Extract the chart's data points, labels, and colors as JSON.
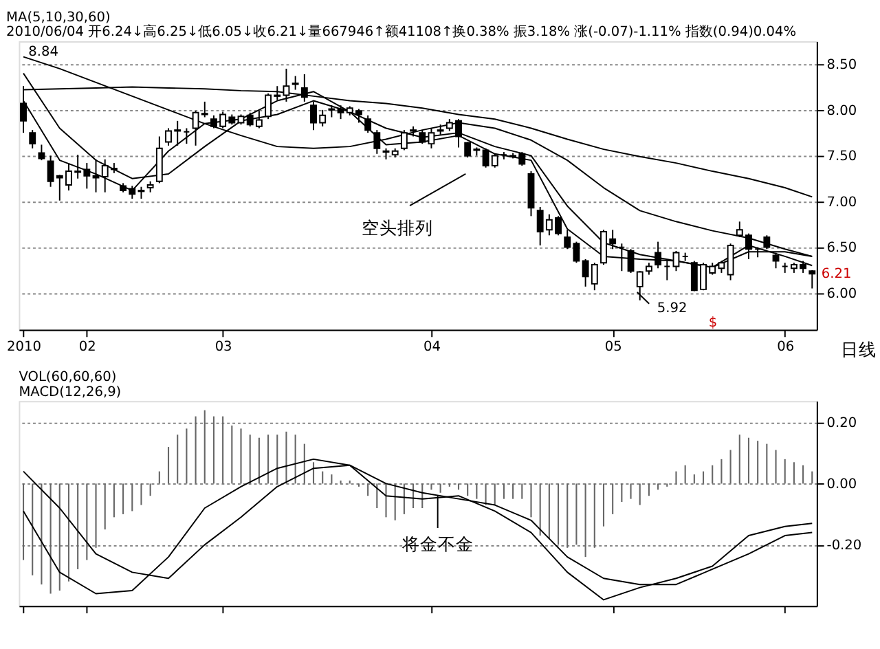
{
  "chart_data": [
    {
      "type": "candlestick",
      "title": "MA(5,10,30,60)",
      "subtitle": "2010/06/04 开6.24↓高6.25↓低6.05↓收6.21↓量667946↑额41108↑换0.38% 振3.18% 涨(-0.07)-1.11% 指数(0.94)0.04%",
      "categories": [
        "2010",
        null,
        null,
        null,
        null,
        null,
        null,
        "02",
        null,
        null,
        null,
        null,
        null,
        null,
        null,
        null,
        null,
        null,
        null,
        null,
        null,
        null,
        "03",
        null,
        null,
        null,
        null,
        null,
        null,
        null,
        null,
        null,
        null,
        null,
        null,
        null,
        null,
        null,
        null,
        null,
        null,
        null,
        null,
        null,
        null,
        "04",
        null,
        null,
        null,
        null,
        null,
        null,
        null,
        null,
        null,
        null,
        null,
        null,
        null,
        null,
        null,
        null,
        null,
        null,
        null,
        "05",
        null,
        null,
        null,
        null,
        null,
        null,
        null,
        null,
        null,
        null,
        null,
        null,
        null,
        null,
        null,
        null,
        null,
        null,
        "06",
        null,
        null,
        null
      ],
      "ohlc": [
        [
          8.07,
          8.26,
          7.75,
          7.88
        ],
        [
          7.75,
          7.78,
          7.58,
          7.63
        ],
        [
          7.53,
          7.62,
          7.45,
          7.47
        ],
        [
          7.44,
          7.5,
          7.16,
          7.22
        ],
        [
          7.28,
          7.29,
          7.01,
          7.26
        ],
        [
          7.18,
          7.42,
          7.12,
          7.33
        ],
        [
          7.33,
          7.51,
          7.25,
          7.32
        ],
        [
          7.35,
          7.42,
          7.14,
          7.28
        ],
        [
          7.28,
          7.46,
          7.1,
          7.26
        ],
        [
          7.27,
          7.46,
          7.1,
          7.39
        ],
        [
          7.35,
          7.42,
          7.31,
          7.36
        ],
        [
          7.17,
          7.2,
          7.1,
          7.12
        ],
        [
          7.14,
          7.17,
          7.03,
          7.08
        ],
        [
          7.12,
          7.16,
          7.03,
          7.11
        ],
        [
          7.15,
          7.22,
          7.1,
          7.18
        ],
        [
          7.22,
          7.71,
          7.2,
          7.58
        ],
        [
          7.65,
          7.8,
          7.61,
          7.77
        ],
        [
          7.78,
          7.88,
          7.61,
          7.77
        ],
        [
          7.76,
          7.8,
          7.63,
          7.76
        ],
        [
          7.8,
          7.99,
          7.61,
          7.97
        ],
        [
          7.96,
          8.09,
          7.92,
          7.95
        ],
        [
          7.9,
          7.94,
          7.8,
          7.82
        ],
        [
          7.82,
          7.98,
          7.8,
          7.95
        ],
        [
          7.92,
          7.95,
          7.84,
          7.86
        ],
        [
          7.86,
          7.95,
          7.84,
          7.93
        ],
        [
          7.94,
          7.97,
          7.82,
          7.84
        ],
        [
          7.82,
          7.99,
          7.8,
          7.89
        ],
        [
          7.93,
          8.18,
          7.9,
          8.16
        ],
        [
          8.16,
          8.26,
          8.11,
          8.15
        ],
        [
          8.16,
          8.45,
          8.09,
          8.26
        ],
        [
          8.28,
          8.37,
          8.22,
          8.29
        ],
        [
          8.24,
          8.39,
          8.09,
          8.14
        ],
        [
          8.05,
          8.09,
          7.78,
          7.86
        ],
        [
          7.86,
          8.0,
          7.82,
          7.94
        ],
        [
          8.01,
          8.05,
          7.92,
          8.0
        ],
        [
          8.01,
          8.05,
          7.9,
          7.97
        ],
        [
          7.97,
          8.04,
          7.94,
          8.02
        ],
        [
          7.99,
          8.01,
          7.86,
          7.95
        ],
        [
          7.9,
          7.94,
          7.75,
          7.78
        ],
        [
          7.75,
          7.78,
          7.52,
          7.58
        ],
        [
          7.55,
          7.58,
          7.46,
          7.54
        ],
        [
          7.51,
          7.58,
          7.48,
          7.55
        ],
        [
          7.58,
          7.78,
          7.56,
          7.75
        ],
        [
          7.78,
          7.82,
          7.71,
          7.77
        ],
        [
          7.75,
          7.78,
          7.63,
          7.65
        ],
        [
          7.63,
          7.8,
          7.58,
          7.75
        ],
        [
          7.78,
          7.84,
          7.73,
          7.77
        ],
        [
          7.8,
          7.9,
          7.77,
          7.86
        ],
        [
          7.88,
          7.9,
          7.59,
          7.71
        ],
        [
          7.64,
          7.65,
          7.48,
          7.5
        ],
        [
          7.57,
          7.59,
          7.5,
          7.56
        ],
        [
          7.56,
          7.58,
          7.37,
          7.39
        ],
        [
          7.39,
          7.52,
          7.37,
          7.5
        ],
        [
          7.51,
          7.54,
          7.46,
          7.51
        ],
        [
          7.5,
          7.53,
          7.47,
          7.49
        ],
        [
          7.52,
          7.54,
          7.39,
          7.41
        ],
        [
          7.3,
          7.33,
          6.84,
          6.93
        ],
        [
          6.9,
          6.94,
          6.52,
          6.67
        ],
        [
          6.69,
          6.86,
          6.63,
          6.8
        ],
        [
          6.82,
          6.84,
          6.63,
          6.65
        ],
        [
          6.61,
          6.69,
          6.48,
          6.5
        ],
        [
          6.54,
          6.56,
          6.33,
          6.35
        ],
        [
          6.35,
          6.37,
          6.07,
          6.18
        ],
        [
          6.1,
          6.33,
          6.03,
          6.31
        ],
        [
          6.33,
          6.69,
          6.31,
          6.67
        ],
        [
          6.59,
          6.69,
          6.48,
          6.54
        ],
        [
          6.5,
          6.54,
          6.24,
          6.5
        ],
        [
          6.46,
          6.48,
          6.22,
          6.24
        ],
        [
          6.07,
          6.24,
          5.92,
          6.23
        ],
        [
          6.24,
          6.33,
          6.2,
          6.29
        ],
        [
          6.44,
          6.56,
          6.27,
          6.31
        ],
        [
          6.29,
          6.35,
          6.14,
          6.29
        ],
        [
          6.29,
          6.46,
          6.24,
          6.44
        ],
        [
          6.4,
          6.44,
          6.35,
          6.4
        ],
        [
          6.33,
          6.35,
          6.02,
          6.03
        ],
        [
          6.04,
          6.33,
          6.03,
          6.31
        ],
        [
          6.22,
          6.33,
          6.2,
          6.29
        ],
        [
          6.27,
          6.35,
          6.22,
          6.33
        ],
        [
          6.2,
          6.54,
          6.14,
          6.52
        ],
        [
          6.63,
          6.78,
          6.61,
          6.69
        ],
        [
          6.63,
          6.65,
          6.37,
          6.48
        ],
        [
          6.48,
          6.5,
          6.39,
          6.48
        ],
        [
          6.61,
          6.63,
          6.48,
          6.5
        ],
        [
          6.41,
          6.44,
          6.27,
          6.35
        ],
        [
          6.29,
          6.33,
          6.22,
          6.29
        ],
        [
          6.27,
          6.33,
          6.22,
          6.31
        ],
        [
          6.31,
          6.35,
          6.22,
          6.27
        ],
        [
          6.24,
          6.25,
          6.05,
          6.21
        ]
      ],
      "series": [
        {
          "type": "line",
          "color": "#000000",
          "values": [
            8.22,
            null,
            null,
            null,
            8.23,
            null,
            null,
            null,
            8.24,
            null,
            null,
            null,
            8.25,
            null,
            null,
            null,
            8.24,
            null,
            null,
            null,
            8.23,
            null,
            null,
            null,
            8.21,
            null,
            null,
            null,
            8.2,
            null,
            null,
            null,
            8.15,
            null,
            null,
            null,
            8.1,
            null,
            null,
            null,
            8.07,
            null,
            null,
            null,
            8.02,
            null,
            null,
            null,
            7.95,
            null,
            null,
            null,
            7.9,
            null,
            null,
            null,
            7.8,
            null,
            null,
            null,
            7.68,
            null,
            null,
            null,
            7.57,
            null,
            null,
            null,
            7.49,
            null,
            null,
            null,
            7.42,
            null,
            null,
            null,
            7.33,
            null,
            null,
            null,
            7.25,
            null,
            null,
            null,
            7.15,
            null,
            null,
            7.05
          ]
        },
        {
          "type": "line",
          "color": "#000000",
          "values": [
            8.58,
            null,
            null,
            null,
            8.45,
            null,
            null,
            null,
            8.3,
            null,
            null,
            null,
            8.15,
            null,
            null,
            null,
            8.0,
            null,
            null,
            null,
            7.85,
            null,
            null,
            null,
            7.72,
            null,
            null,
            null,
            7.6,
            null,
            null,
            null,
            7.58,
            null,
            null,
            null,
            7.6,
            null,
            null,
            null,
            7.68,
            null,
            null,
            null,
            7.78,
            null,
            null,
            null,
            7.86,
            null,
            null,
            null,
            7.8,
            null,
            null,
            null,
            7.67,
            null,
            null,
            null,
            7.45,
            null,
            null,
            null,
            7.15,
            null,
            null,
            null,
            6.9,
            null,
            null,
            null,
            6.78,
            null,
            null,
            null,
            6.68,
            null,
            null,
            null,
            6.6,
            null,
            null,
            null,
            6.48,
            null,
            null,
            6.4
          ]
        },
        {
          "type": "line",
          "color": "#000000",
          "values": [
            8.4,
            null,
            null,
            null,
            7.8,
            null,
            null,
            null,
            7.45,
            null,
            null,
            null,
            7.25,
            null,
            null,
            null,
            7.3,
            null,
            null,
            null,
            7.6,
            null,
            null,
            null,
            7.88,
            null,
            null,
            null,
            7.95,
            null,
            null,
            null,
            8.1,
            null,
            null,
            null,
            7.98,
            null,
            null,
            null,
            7.8,
            null,
            null,
            null,
            7.7,
            null,
            null,
            null,
            7.75,
            null,
            null,
            null,
            7.6,
            null,
            null,
            null,
            7.5,
            null,
            null,
            null,
            6.95,
            null,
            null,
            null,
            6.55,
            null,
            null,
            null,
            6.42,
            null,
            null,
            null,
            6.35,
            null,
            null,
            null,
            6.28,
            null,
            null,
            null,
            6.45,
            null,
            null,
            null,
            6.45,
            null,
            null,
            6.4
          ]
        },
        {
          "type": "line",
          "color": "#000000",
          "values": [
            8.1,
            null,
            null,
            null,
            7.45,
            null,
            null,
            null,
            7.3,
            null,
            null,
            null,
            7.12,
            null,
            null,
            null,
            7.55,
            null,
            null,
            null,
            7.85,
            null,
            null,
            null,
            7.9,
            null,
            null,
            null,
            8.1,
            null,
            null,
            null,
            8.2,
            null,
            null,
            null,
            7.98,
            null,
            null,
            null,
            7.62,
            null,
            null,
            null,
            7.65,
            null,
            null,
            null,
            7.72,
            null,
            null,
            null,
            7.52,
            null,
            null,
            null,
            7.45,
            null,
            null,
            null,
            6.7,
            null,
            null,
            null,
            6.4,
            null,
            null,
            null,
            6.37,
            null,
            null,
            null,
            6.35,
            null,
            null,
            null,
            6.28,
            null,
            null,
            null,
            6.52,
            null,
            null,
            null,
            6.4,
            null,
            null,
            6.3
          ]
        }
      ],
      "ylim": [
        5.6,
        8.75
      ],
      "yticks": [
        {
          "value": 6.0,
          "label": "6.00"
        },
        {
          "value": 6.5,
          "label": "6.50"
        },
        {
          "value": 7.0,
          "label": "7.00"
        },
        {
          "value": 7.5,
          "label": "7.50"
        },
        {
          "value": 8.0,
          "label": "8.00"
        },
        {
          "value": 8.5,
          "label": "8.50"
        }
      ],
      "grid": "y",
      "annotations": [
        "8.84",
        "5.92",
        "空头排列",
        "6.21",
        "$",
        "日线"
      ]
    },
    {
      "type": "bar",
      "title": "VOL(60,60,60)",
      "subtitle": "MACD(12,26,9)",
      "categories": [
        "2010",
        null,
        null,
        null,
        null,
        null,
        null,
        "02",
        null,
        null,
        null,
        null,
        null,
        null,
        null,
        null,
        null,
        null,
        null,
        null,
        null,
        null,
        "03",
        null,
        null,
        null,
        null,
        null,
        null,
        null,
        null,
        null,
        null,
        null,
        null,
        null,
        null,
        null,
        null,
        null,
        null,
        null,
        null,
        null,
        null,
        "04",
        null,
        null,
        null,
        null,
        null,
        null,
        null,
        null,
        null,
        null,
        null,
        null,
        null,
        null,
        null,
        null,
        null,
        null,
        null,
        "05",
        null,
        null,
        null,
        null,
        null,
        null,
        null,
        null,
        null,
        null,
        null,
        null,
        null,
        null,
        null,
        null,
        null,
        null,
        "06",
        null,
        null,
        null
      ],
      "series": [
        {
          "type": "bar",
          "color": "#666666",
          "values": [
            -0.25,
            -0.3,
            -0.33,
            -0.36,
            -0.35,
            -0.32,
            -0.28,
            -0.25,
            -0.21,
            -0.15,
            -0.11,
            -0.1,
            -0.09,
            -0.07,
            -0.04,
            0.04,
            0.12,
            0.16,
            0.18,
            0.22,
            0.24,
            0.22,
            0.22,
            0.19,
            0.18,
            0.16,
            0.15,
            0.16,
            0.16,
            0.17,
            0.16,
            0.13,
            0.07,
            0.04,
            0.03,
            0.01,
            0.01,
            -0.01,
            -0.04,
            -0.08,
            -0.11,
            -0.12,
            -0.1,
            -0.08,
            -0.08,
            -0.02,
            -0.03,
            -0.01,
            -0.02,
            -0.04,
            -0.05,
            -0.07,
            -0.07,
            -0.05,
            -0.05,
            -0.05,
            -0.11,
            -0.17,
            -0.18,
            -0.2,
            -0.21,
            -0.2,
            -0.24,
            -0.21,
            -0.14,
            -0.1,
            -0.06,
            -0.05,
            -0.07,
            -0.04,
            -0.02,
            -0.01,
            0.04,
            0.06,
            0.03,
            0.04,
            0.06,
            0.08,
            0.11,
            0.16,
            0.15,
            0.14,
            0.13,
            0.11,
            0.08,
            0.07,
            0.06,
            0.04
          ]
        },
        {
          "type": "line",
          "color": "#000000",
          "values": [
            -0.09,
            null,
            null,
            null,
            -0.29,
            null,
            null,
            null,
            -0.36,
            null,
            null,
            null,
            -0.35,
            null,
            null,
            null,
            -0.24,
            null,
            null,
            null,
            -0.08,
            null,
            null,
            null,
            -0.01,
            null,
            null,
            null,
            0.05,
            null,
            null,
            null,
            0.08,
            null,
            null,
            null,
            0.06,
            null,
            null,
            null,
            -0.04,
            null,
            null,
            null,
            -0.05,
            null,
            null,
            null,
            -0.04,
            null,
            null,
            null,
            -0.09,
            null,
            null,
            null,
            -0.16,
            null,
            null,
            null,
            -0.29,
            null,
            null,
            null,
            -0.38,
            null,
            null,
            null,
            -0.34,
            null,
            null,
            null,
            -0.31,
            null,
            null,
            null,
            -0.27,
            null,
            null,
            null,
            -0.17,
            null,
            null,
            null,
            -0.14,
            null,
            null,
            -0.13
          ]
        },
        {
          "type": "line",
          "color": "#000000",
          "values": [
            0.04,
            null,
            null,
            null,
            -0.08,
            null,
            null,
            null,
            -0.23,
            null,
            null,
            null,
            -0.29,
            null,
            null,
            null,
            -0.31,
            null,
            null,
            null,
            -0.2,
            null,
            null,
            null,
            -0.11,
            null,
            null,
            null,
            -0.01,
            null,
            null,
            null,
            0.05,
            null,
            null,
            null,
            0.06,
            null,
            null,
            null,
            0.0,
            null,
            null,
            null,
            -0.03,
            null,
            null,
            null,
            -0.05,
            null,
            null,
            null,
            -0.07,
            null,
            null,
            null,
            -0.12,
            null,
            null,
            null,
            -0.24,
            null,
            null,
            null,
            -0.31,
            null,
            null,
            null,
            -0.33,
            null,
            null,
            null,
            -0.33,
            null,
            null,
            null,
            -0.28,
            null,
            null,
            null,
            -0.23,
            null,
            null,
            null,
            -0.17,
            null,
            null,
            -0.16
          ]
        }
      ],
      "ylim": [
        -0.4,
        0.27
      ],
      "yticks": [
        {
          "value": -0.2,
          "label": "-0.20"
        },
        {
          "value": 0.0,
          "label": "0.00"
        },
        {
          "value": 0.2,
          "label": "0.20"
        }
      ],
      "grid": "y",
      "tick_labels": "y",
      "annotations": [
        {
          "text": "将金不金",
          "y": -0.04
        }
      ]
    }
  ]
}
